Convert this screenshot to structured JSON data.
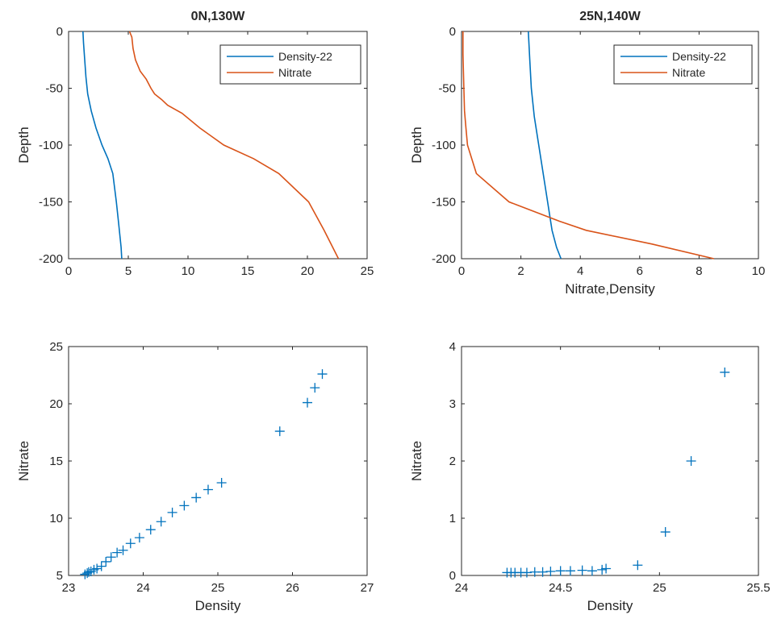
{
  "chart_data": [
    {
      "type": "line",
      "title": "0N,130W",
      "xlabel": "",
      "ylabel": "Depth",
      "xlim": [
        0,
        25
      ],
      "ylim": [
        -200,
        0
      ],
      "xticks": [
        "0",
        "5",
        "10",
        "15",
        "20",
        "25"
      ],
      "yticks": [
        "-200",
        "-150",
        "-100",
        "-50",
        "0"
      ],
      "legend_position": "top-right",
      "series": [
        {
          "name": "Density-22",
          "color": "#0072BD",
          "x": [
            1.2,
            1.25,
            1.35,
            1.45,
            1.6,
            1.9,
            2.3,
            2.8,
            3.3,
            3.7,
            4.0,
            4.2,
            4.4,
            4.45
          ],
          "y": [
            0,
            -10,
            -25,
            -40,
            -55,
            -70,
            -85,
            -100,
            -112,
            -125,
            -150,
            -170,
            -190,
            -200
          ]
        },
        {
          "name": "Nitrate",
          "color": "#D95319",
          "x": [
            5.1,
            5.3,
            5.4,
            5.6,
            6.0,
            6.5,
            6.9,
            7.2,
            7.8,
            8.3,
            9.5,
            11.0,
            13.0,
            15.5,
            17.6,
            20.1,
            21.4,
            22.6
          ],
          "y": [
            0,
            -5,
            -15,
            -25,
            -35,
            -42,
            -50,
            -55,
            -60,
            -65,
            -72,
            -85,
            -100,
            -112,
            -125,
            -150,
            -175,
            -200
          ]
        }
      ]
    },
    {
      "type": "line",
      "title": "25N,140W",
      "xlabel": "Nitrate,Density",
      "ylabel": "Depth",
      "xlim": [
        0,
        10
      ],
      "ylim": [
        -200,
        0
      ],
      "xticks": [
        "0",
        "2",
        "4",
        "6",
        "8",
        "10"
      ],
      "yticks": [
        "-200",
        "-150",
        "-100",
        "-50",
        "0"
      ],
      "legend_position": "top-right",
      "series": [
        {
          "name": "Density-22",
          "color": "#0072BD",
          "x": [
            2.25,
            2.3,
            2.35,
            2.45,
            2.6,
            2.75,
            2.9,
            3.05,
            3.2,
            3.35
          ],
          "y": [
            0,
            -25,
            -50,
            -75,
            -100,
            -125,
            -150,
            -175,
            -190,
            -200
          ]
        },
        {
          "name": "Nitrate",
          "color": "#D95319",
          "x": [
            0.05,
            0.05,
            0.08,
            0.1,
            0.15,
            0.2,
            0.5,
            1.6,
            3.3,
            4.2,
            6.4,
            8.5
          ],
          "y": [
            0,
            -20,
            -50,
            -70,
            -85,
            -100,
            -125,
            -150,
            -167,
            -175,
            -187,
            -200
          ]
        }
      ]
    },
    {
      "type": "scatter",
      "title": "",
      "xlabel": "Density",
      "ylabel": "Nitrate",
      "xlim": [
        23,
        27
      ],
      "ylim": [
        5,
        25
      ],
      "xticks": [
        "23",
        "24",
        "25",
        "26",
        "27"
      ],
      "yticks": [
        "5",
        "10",
        "15",
        "20",
        "25"
      ],
      "series": [
        {
          "color": "#0072BD",
          "x": [
            23.22,
            23.25,
            23.27,
            23.3,
            23.34,
            23.38,
            23.44,
            23.5,
            23.57,
            23.65,
            23.73,
            23.83,
            23.95,
            24.1,
            24.24,
            24.39,
            24.55,
            24.71,
            24.87,
            25.05,
            25.83,
            26.2,
            26.3,
            26.4
          ],
          "y": [
            5.1,
            5.2,
            5.3,
            5.35,
            5.5,
            5.6,
            5.8,
            6.2,
            6.6,
            7.0,
            7.2,
            7.8,
            8.3,
            9.0,
            9.7,
            10.5,
            11.1,
            11.8,
            12.5,
            13.1,
            17.6,
            20.1,
            21.4,
            22.6
          ]
        }
      ]
    },
    {
      "type": "scatter",
      "title": "",
      "xlabel": "Density",
      "ylabel": "Nitrate",
      "xlim": [
        24,
        25.5
      ],
      "ylim": [
        0,
        4
      ],
      "xticks": [
        "24",
        "24.5",
        "25",
        "25.5"
      ],
      "yticks": [
        "0",
        "1",
        "2",
        "3",
        "4"
      ],
      "series": [
        {
          "color": "#0072BD",
          "x": [
            24.23,
            24.25,
            24.27,
            24.3,
            24.33,
            24.37,
            24.41,
            24.45,
            24.5,
            24.55,
            24.61,
            24.66,
            24.71,
            24.73,
            24.89,
            25.03,
            25.16,
            25.33
          ],
          "y": [
            0.05,
            0.05,
            0.05,
            0.05,
            0.05,
            0.06,
            0.06,
            0.07,
            0.08,
            0.08,
            0.09,
            0.08,
            0.1,
            0.12,
            0.18,
            0.76,
            2.0,
            3.55
          ]
        }
      ]
    }
  ]
}
